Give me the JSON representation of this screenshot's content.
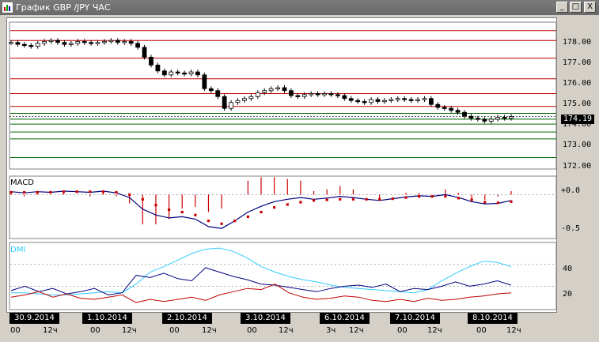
{
  "window": {
    "title": "График GBP /JPY  ЧАС",
    "buttons": {
      "minimize": "_",
      "maximize": "□",
      "close": "X"
    }
  },
  "colors": {
    "background": "#ffffff",
    "resistance_line": "#c00000",
    "support_line": "#006400",
    "candle": "#000000",
    "macd_line": "#000080",
    "signal_dots": "#cc0000",
    "histogram": "#cc0000",
    "dmi_adx": "#33ccff",
    "dmi_plus": "#000080",
    "dmi_minus": "#c00000"
  },
  "price_axis": {
    "ticks": [
      "178.00",
      "177.00",
      "176.00",
      "175.00",
      "174.00",
      "173.00",
      "172.00"
    ],
    "current_price": "174.19"
  },
  "macd": {
    "label": "MACD",
    "ticks": [
      "+0.0",
      "-0.5"
    ]
  },
  "dmi": {
    "label": "DMI",
    "ticks": [
      "40",
      "20"
    ]
  },
  "dates": [
    "30.9.2014",
    "1.10.2014",
    "2.10.2014",
    "3.10.2014",
    "6.10.2014",
    "7.10.2014",
    "8.10.2014"
  ],
  "hour_ticks": [
    "00",
    "12ч",
    "00",
    "12ч",
    "00",
    "12ч",
    "00",
    "12ч",
    "3ч",
    "12ч",
    "00",
    "12ч",
    "00",
    "12ч"
  ],
  "chart_data": {
    "type": "candlestick",
    "title": "График GBP /JPY  ЧАС",
    "ylim": [
      171.6,
      178.9
    ],
    "price_levels": {
      "resistance": [
        178.55,
        178.05,
        177.15,
        176.1,
        175.35,
        174.7
      ],
      "support": [
        174.35,
        174.05,
        173.8,
        173.4,
        173.05,
        172.1
      ]
    },
    "close_series": [
      177.95,
      177.85,
      177.8,
      177.75,
      177.9,
      178.0,
      178.05,
      177.95,
      177.85,
      177.9,
      178.0,
      177.95,
      177.9,
      177.95,
      178.0,
      178.05,
      177.95,
      178.0,
      177.9,
      177.7,
      177.2,
      176.8,
      176.5,
      176.3,
      176.45,
      176.4,
      176.35,
      176.45,
      176.3,
      175.6,
      175.5,
      175.2,
      174.6,
      174.9,
      175.0,
      175.1,
      175.2,
      175.4,
      175.5,
      175.6,
      175.65,
      175.5,
      175.25,
      175.2,
      175.3,
      175.35,
      175.3,
      175.35,
      175.3,
      175.25,
      175.1,
      175.0,
      174.95,
      174.9,
      175.05,
      174.95,
      175.0,
      175.05,
      175.1,
      175.05,
      175.0,
      175.05,
      175.1,
      174.8,
      174.65,
      174.6,
      174.5,
      174.4,
      174.2,
      174.1,
      174.05,
      173.95,
      174.05,
      174.15,
      174.1,
      174.19
    ],
    "macd": {
      "ylim": [
        -0.7,
        0.25
      ],
      "macd_line": [
        0.05,
        0.03,
        0.05,
        0.04,
        0.06,
        0.05,
        0.04,
        0.06,
        0.03,
        -0.05,
        -0.25,
        -0.35,
        -0.4,
        -0.38,
        -0.42,
        -0.55,
        -0.58,
        -0.45,
        -0.3,
        -0.2,
        -0.12,
        -0.08,
        -0.05,
        -0.08,
        -0.06,
        -0.03,
        -0.05,
        -0.08,
        -0.1,
        -0.07,
        -0.04,
        -0.02,
        -0.03,
        0.0,
        -0.05,
        -0.12,
        -0.16,
        -0.15,
        -0.1
      ],
      "signal_line": [
        0.04,
        0.04,
        0.04,
        0.04,
        0.05,
        0.05,
        0.05,
        0.05,
        0.04,
        0.0,
        -0.08,
        -0.18,
        -0.26,
        -0.3,
        -0.35,
        -0.45,
        -0.5,
        -0.45,
        -0.38,
        -0.3,
        -0.22,
        -0.17,
        -0.13,
        -0.1,
        -0.09,
        -0.08,
        -0.08,
        -0.08,
        -0.08,
        -0.07,
        -0.05,
        -0.03,
        -0.03,
        -0.03,
        -0.06,
        -0.09,
        -0.13,
        -0.14,
        -0.12
      ]
    },
    "dmi": {
      "ylim": [
        0,
        58
      ],
      "adx": [
        14,
        14,
        13,
        12,
        12,
        13,
        14,
        15,
        14,
        22,
        33,
        38,
        44,
        50,
        54,
        55,
        52,
        46,
        38,
        33,
        29,
        26,
        24,
        21,
        19,
        18,
        17,
        16,
        15,
        14,
        17,
        25,
        32,
        38,
        43,
        42,
        38
      ],
      "plus_di": [
        16,
        20,
        15,
        18,
        13,
        15,
        18,
        12,
        14,
        30,
        28,
        32,
        27,
        25,
        37,
        33,
        29,
        26,
        22,
        21,
        19,
        17,
        15,
        18,
        20,
        21,
        19,
        22,
        15,
        18,
        17,
        20,
        24,
        20,
        22,
        25,
        21
      ],
      "minus_di": [
        10,
        12,
        15,
        10,
        13,
        9,
        8,
        10,
        12,
        5,
        8,
        6,
        8,
        10,
        7,
        12,
        15,
        18,
        17,
        22,
        14,
        10,
        8,
        9,
        11,
        10,
        7,
        6,
        8,
        6,
        9,
        7,
        8,
        10,
        11,
        13,
        14
      ]
    }
  }
}
